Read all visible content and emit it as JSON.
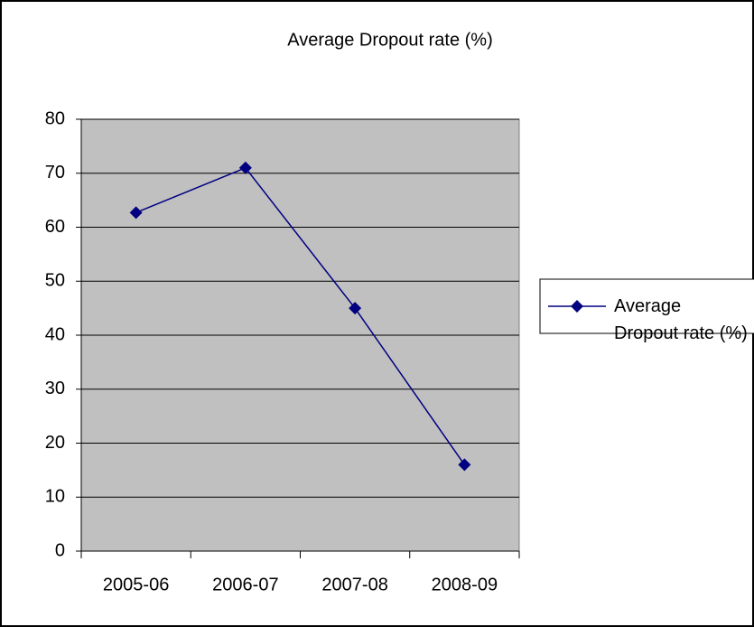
{
  "chart_data": {
    "type": "line",
    "title": "Average Dropout rate (%)",
    "categories": [
      "2005-06",
      "2006-07",
      "2007-08",
      "2008-09"
    ],
    "series": [
      {
        "name": "Average Dropout rate (%)",
        "color": "#000080",
        "values": [
          62.7,
          71,
          45,
          16
        ]
      }
    ],
    "ylim": [
      0,
      80
    ],
    "yticks": [
      0,
      10,
      20,
      30,
      40,
      50,
      60,
      70,
      80
    ],
    "grid": true,
    "legend": "right"
  }
}
